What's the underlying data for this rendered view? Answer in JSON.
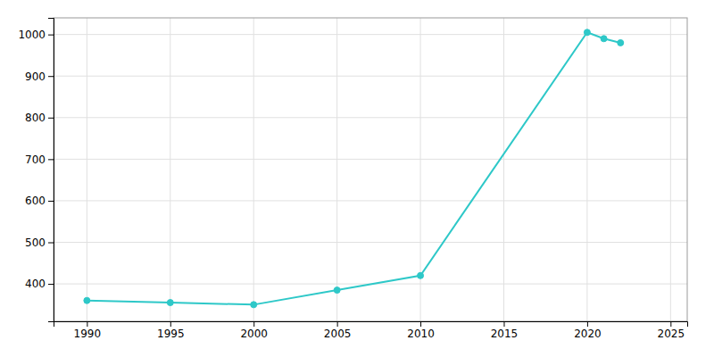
{
  "chart_data": {
    "type": "line",
    "x": [
      1990,
      1995,
      2000,
      2005,
      2010,
      2020,
      2021,
      2022
    ],
    "values": [
      360,
      355,
      350,
      385,
      420,
      1005,
      990,
      980
    ],
    "color": "#2ec8c8",
    "marker": "circle",
    "xlim": [
      1988,
      2026
    ],
    "ylim": [
      310,
      1040
    ],
    "xticks": [
      1990,
      1995,
      2000,
      2005,
      2010,
      2015,
      2020,
      2025
    ],
    "yticks": [
      400,
      500,
      600,
      700,
      800,
      900,
      1000
    ],
    "grid": true
  }
}
